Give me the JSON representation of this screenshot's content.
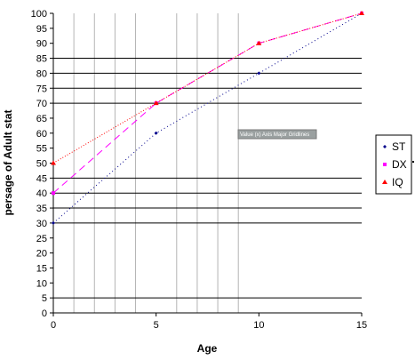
{
  "chart_data": {
    "type": "line",
    "xlabel": "Age",
    "ylabel": "persage of Adult stat",
    "xlim": [
      0,
      15
    ],
    "ylim": [
      0,
      100
    ],
    "x_ticks": [
      0,
      5,
      10,
      15
    ],
    "y_ticks": [
      0,
      5,
      10,
      15,
      20,
      25,
      30,
      35,
      40,
      45,
      50,
      55,
      60,
      65,
      70,
      75,
      80,
      85,
      90,
      95,
      100
    ],
    "x_tick_labels": [
      "0",
      "5",
      "10",
      "15"
    ],
    "y_tick_labels": [
      "0",
      "5",
      "10",
      "15",
      "20",
      "25",
      "30",
      "35",
      "40",
      "45",
      "50",
      "55",
      "60",
      "65",
      "70",
      "75",
      "80",
      "85",
      "90",
      "95",
      "100"
    ],
    "vertical_gridlines_x": [
      1,
      2,
      3,
      4,
      6,
      7,
      8,
      9
    ],
    "horizontal_gridlines_y": [
      5,
      30,
      35,
      40,
      45,
      70,
      75,
      80,
      85
    ],
    "grid": true,
    "legend_position": "right",
    "annotation": "Value (x) Axis Major Gridlines",
    "series": [
      {
        "name": "ST",
        "x": [
          0,
          5,
          10,
          15
        ],
        "values": [
          30,
          60,
          80,
          100
        ],
        "color": "#00008b",
        "marker": "diamond",
        "dash": "1,3"
      },
      {
        "name": "DX",
        "x": [
          0,
          5,
          10,
          15
        ],
        "values": [
          40,
          70,
          90,
          100
        ],
        "color": "#ff00ff",
        "marker": "square",
        "dash": "8,5"
      },
      {
        "name": "IQ",
        "x": [
          0,
          5,
          10,
          15
        ],
        "values": [
          50,
          70,
          90,
          100
        ],
        "color": "#ff0000",
        "marker": "triangle",
        "dash": "1,2"
      }
    ]
  }
}
